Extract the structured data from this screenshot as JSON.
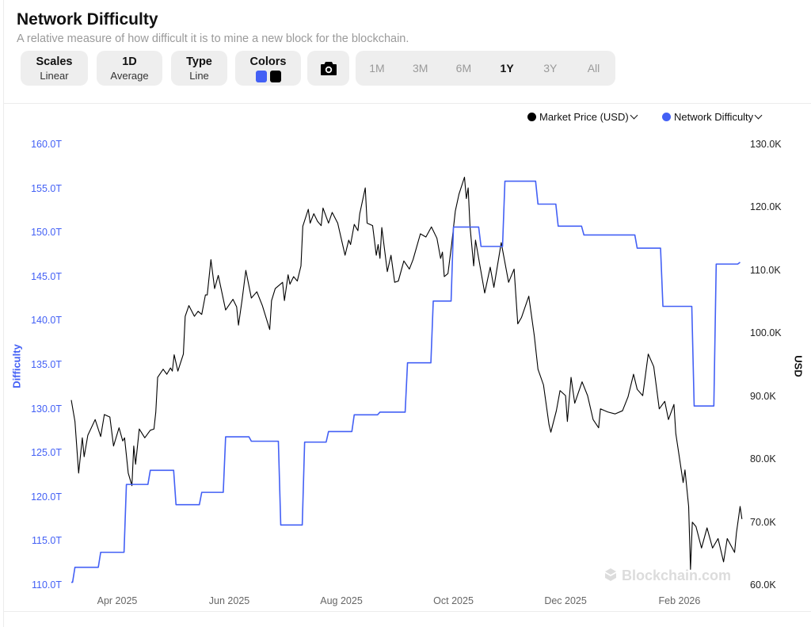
{
  "header": {
    "title": "Network Difficulty",
    "subtitle": "A relative measure of how difficult it is to mine a new block for the blockchain."
  },
  "controls": {
    "scales": {
      "label": "Scales",
      "value": "Linear"
    },
    "average": {
      "label": "1D",
      "value": "Average"
    },
    "type": {
      "label": "Type",
      "value": "Line"
    },
    "colors": {
      "label": "Colors",
      "swatches": [
        "#4360f5",
        "#000000"
      ]
    },
    "camera_icon": "camera-icon",
    "ranges": [
      "1M",
      "3M",
      "6M",
      "1Y",
      "3Y",
      "All"
    ],
    "active_range": "1Y"
  },
  "watermark": "Blockchain.com",
  "chart_data": {
    "type": "line",
    "legend_placement": "top-right",
    "legend": [
      {
        "name": "Market Price (USD)",
        "color": "#000000"
      },
      {
        "name": "Network Difficulty",
        "color": "#4360f5"
      }
    ],
    "y_left": {
      "label": "Difficulty",
      "range": [
        110,
        160
      ],
      "ticks": [
        "110.0T",
        "115.0T",
        "120.0T",
        "125.0T",
        "130.0T",
        "135.0T",
        "140.0T",
        "145.0T",
        "150.0T",
        "155.0T",
        "160.0T"
      ],
      "unit": "T"
    },
    "y_right": {
      "label": "USD",
      "range": [
        60,
        130
      ],
      "ticks": [
        "60.0K",
        "70.0K",
        "80.0K",
        "90.0K",
        "100.0K",
        "110.0K",
        "120.0K",
        "130.0K"
      ],
      "unit": "K"
    },
    "x_ticks": [
      "Apr 2025",
      "Jun 2025",
      "Aug 2025",
      "Oct 2025",
      "Dec 2025",
      "Feb 2026"
    ],
    "grid": false,
    "series": [
      {
        "name": "Network Difficulty",
        "axis": "left",
        "color": "#4360f5",
        "step": true,
        "points": [
          [
            "2025-03-07",
            110.4
          ],
          [
            "2025-03-09",
            112.1
          ],
          [
            "2025-03-23",
            113.8
          ],
          [
            "2025-04-06",
            121.5
          ],
          [
            "2025-04-19",
            123.1
          ],
          [
            "2025-05-03",
            119.2
          ],
          [
            "2025-05-17",
            120.6
          ],
          [
            "2025-05-30",
            126.9
          ],
          [
            "2025-06-13",
            126.4
          ],
          [
            "2025-06-29",
            116.9
          ],
          [
            "2025-07-12",
            126.3
          ],
          [
            "2025-07-25",
            127.5
          ],
          [
            "2025-08-08",
            129.4
          ],
          [
            "2025-08-22",
            129.7
          ],
          [
            "2025-09-06",
            135.3
          ],
          [
            "2025-09-20",
            142.3
          ],
          [
            "2025-10-01",
            150.7
          ],
          [
            "2025-10-16",
            148.5
          ],
          [
            "2025-10-29",
            155.9
          ],
          [
            "2025-11-16",
            153.3
          ],
          [
            "2025-11-27",
            150.8
          ],
          [
            "2025-12-11",
            149.8
          ],
          [
            "2026-01-09",
            148.3
          ],
          [
            "2026-01-23",
            141.7
          ],
          [
            "2026-02-09",
            130.4
          ],
          [
            "2026-02-21",
            146.5
          ],
          [
            "2026-03-06",
            146.7
          ]
        ]
      },
      {
        "name": "Market Price (USD)",
        "axis": "right",
        "color": "#000000",
        "step": false,
        "points": [
          [
            "2025-03-07",
            89.5
          ],
          [
            "2025-03-09",
            86.1
          ],
          [
            "2025-03-11",
            77.9
          ],
          [
            "2025-03-13",
            83.5
          ],
          [
            "2025-03-14",
            80.5
          ],
          [
            "2025-03-16",
            83.9
          ],
          [
            "2025-03-20",
            86.4
          ],
          [
            "2025-03-23",
            83.7
          ],
          [
            "2025-03-25",
            87.2
          ],
          [
            "2025-03-28",
            86.8
          ],
          [
            "2025-03-30",
            82.2
          ],
          [
            "2025-04-02",
            85.1
          ],
          [
            "2025-04-04",
            83.0
          ],
          [
            "2025-04-05",
            83.5
          ],
          [
            "2025-04-07",
            77.9
          ],
          [
            "2025-04-09",
            75.9
          ],
          [
            "2025-04-10",
            82.2
          ],
          [
            "2025-04-11",
            79.3
          ],
          [
            "2025-04-13",
            84.9
          ],
          [
            "2025-04-16",
            83.5
          ],
          [
            "2025-04-19",
            84.7
          ],
          [
            "2025-04-21",
            84.9
          ],
          [
            "2025-04-22",
            87.6
          ],
          [
            "2025-04-23",
            93.1
          ],
          [
            "2025-04-26",
            94.4
          ],
          [
            "2025-04-28",
            93.6
          ],
          [
            "2025-04-30",
            94.6
          ],
          [
            "2025-05-01",
            94.1
          ],
          [
            "2025-05-02",
            96.7
          ],
          [
            "2025-05-04",
            94.1
          ],
          [
            "2025-05-07",
            96.8
          ],
          [
            "2025-05-08",
            102.8
          ],
          [
            "2025-05-10",
            104.5
          ],
          [
            "2025-05-13",
            102.8
          ],
          [
            "2025-05-15",
            103.6
          ],
          [
            "2025-05-17",
            103.1
          ],
          [
            "2025-05-19",
            106.2
          ],
          [
            "2025-05-20",
            106.2
          ],
          [
            "2025-05-22",
            111.8
          ],
          [
            "2025-05-24",
            107.2
          ],
          [
            "2025-05-26",
            109.3
          ],
          [
            "2025-05-30",
            103.8
          ],
          [
            "2025-06-03",
            105.5
          ],
          [
            "2025-06-05",
            104.3
          ],
          [
            "2025-06-06",
            101.4
          ],
          [
            "2025-06-08",
            105.5
          ],
          [
            "2025-06-10",
            110.1
          ],
          [
            "2025-06-13",
            105.7
          ],
          [
            "2025-06-16",
            106.7
          ],
          [
            "2025-06-19",
            104.5
          ],
          [
            "2025-06-23",
            100.7
          ],
          [
            "2025-06-24",
            105.3
          ],
          [
            "2025-06-26",
            107.2
          ],
          [
            "2025-06-30",
            108.2
          ],
          [
            "2025-07-01",
            105.3
          ],
          [
            "2025-07-03",
            109.4
          ],
          [
            "2025-07-04",
            107.9
          ],
          [
            "2025-07-06",
            109.1
          ],
          [
            "2025-07-08",
            108.4
          ],
          [
            "2025-07-10",
            110.8
          ],
          [
            "2025-07-11",
            117.1
          ],
          [
            "2025-07-14",
            119.8
          ],
          [
            "2025-07-15",
            117.6
          ],
          [
            "2025-07-17",
            119.1
          ],
          [
            "2025-07-19",
            117.9
          ],
          [
            "2025-07-21",
            117.2
          ],
          [
            "2025-07-22",
            120.0
          ],
          [
            "2025-07-25",
            117.6
          ],
          [
            "2025-07-27",
            119.3
          ],
          [
            "2025-07-30",
            117.6
          ],
          [
            "2025-08-03",
            112.5
          ],
          [
            "2025-08-05",
            114.9
          ],
          [
            "2025-08-06",
            114.2
          ],
          [
            "2025-08-08",
            117.4
          ],
          [
            "2025-08-10",
            116.4
          ],
          [
            "2025-08-11",
            119.1
          ],
          [
            "2025-08-14",
            123.2
          ],
          [
            "2025-08-15",
            117.6
          ],
          [
            "2025-08-18",
            117.2
          ],
          [
            "2025-08-20",
            112.5
          ],
          [
            "2025-08-21",
            114.2
          ],
          [
            "2025-08-22",
            112.0
          ],
          [
            "2025-08-23",
            116.9
          ],
          [
            "2025-08-26",
            109.9
          ],
          [
            "2025-08-28",
            112.5
          ],
          [
            "2025-08-30",
            108.2
          ],
          [
            "2025-09-01",
            108.4
          ],
          [
            "2025-09-04",
            111.6
          ],
          [
            "2025-09-07",
            110.3
          ],
          [
            "2025-09-09",
            111.8
          ],
          [
            "2025-09-13",
            115.9
          ],
          [
            "2025-09-16",
            115.4
          ],
          [
            "2025-09-19",
            117.0
          ],
          [
            "2025-09-22",
            115.2
          ],
          [
            "2025-09-24",
            112.0
          ],
          [
            "2025-09-25",
            113.0
          ],
          [
            "2025-09-26",
            109.1
          ],
          [
            "2025-09-28",
            109.6
          ],
          [
            "2025-09-30",
            114.2
          ],
          [
            "2025-10-02",
            119.5
          ],
          [
            "2025-10-04",
            122.2
          ],
          [
            "2025-10-07",
            124.9
          ],
          [
            "2025-10-08",
            121.5
          ],
          [
            "2025-10-09",
            123.2
          ],
          [
            "2025-10-10",
            117.1
          ],
          [
            "2025-10-12",
            110.8
          ],
          [
            "2025-10-13",
            114.9
          ],
          [
            "2025-10-18",
            106.5
          ],
          [
            "2025-10-21",
            110.6
          ],
          [
            "2025-10-23",
            107.4
          ],
          [
            "2025-10-27",
            114.5
          ],
          [
            "2025-10-31",
            108.2
          ],
          [
            "2025-11-03",
            110.3
          ],
          [
            "2025-11-05",
            101.6
          ],
          [
            "2025-11-07",
            102.6
          ],
          [
            "2025-11-11",
            106.0
          ],
          [
            "2025-11-14",
            99.7
          ],
          [
            "2025-11-16",
            94.4
          ],
          [
            "2025-11-19",
            91.9
          ],
          [
            "2025-11-22",
            85.6
          ],
          [
            "2025-11-23",
            84.4
          ],
          [
            "2025-11-26",
            87.8
          ],
          [
            "2025-11-28",
            91.0
          ],
          [
            "2025-12-01",
            90.2
          ],
          [
            "2025-12-02",
            86.1
          ],
          [
            "2025-12-04",
            93.1
          ],
          [
            "2025-12-06",
            89.0
          ],
          [
            "2025-12-10",
            92.4
          ],
          [
            "2025-12-13",
            90.2
          ],
          [
            "2025-12-16",
            86.4
          ],
          [
            "2025-12-19",
            85.1
          ],
          [
            "2025-12-20",
            88.1
          ],
          [
            "2025-12-24",
            87.6
          ],
          [
            "2025-12-28",
            87.3
          ],
          [
            "2026-01-01",
            87.8
          ],
          [
            "2026-01-04",
            90.0
          ],
          [
            "2026-01-07",
            93.6
          ],
          [
            "2026-01-09",
            91.2
          ],
          [
            "2026-01-12",
            90.2
          ],
          [
            "2026-01-15",
            96.8
          ],
          [
            "2026-01-18",
            94.8
          ],
          [
            "2026-01-21",
            88.1
          ],
          [
            "2026-01-24",
            89.3
          ],
          [
            "2026-01-26",
            86.4
          ],
          [
            "2026-01-29",
            88.8
          ],
          [
            "2026-01-30",
            84.2
          ],
          [
            "2026-02-03",
            76.4
          ],
          [
            "2026-02-04",
            78.4
          ],
          [
            "2026-02-06",
            72.6
          ],
          [
            "2026-02-07",
            62.6
          ],
          [
            "2026-02-08",
            70.1
          ],
          [
            "2026-02-10",
            69.4
          ],
          [
            "2026-02-13",
            66.0
          ],
          [
            "2026-02-16",
            69.2
          ],
          [
            "2026-02-19",
            66.0
          ],
          [
            "2026-02-22",
            67.5
          ],
          [
            "2026-02-25",
            63.8
          ],
          [
            "2026-02-27",
            67.5
          ],
          [
            "2026-03-03",
            65.3
          ],
          [
            "2026-03-04",
            68.4
          ],
          [
            "2026-03-06",
            72.6
          ],
          [
            "2026-03-07",
            70.6
          ]
        ]
      }
    ]
  }
}
